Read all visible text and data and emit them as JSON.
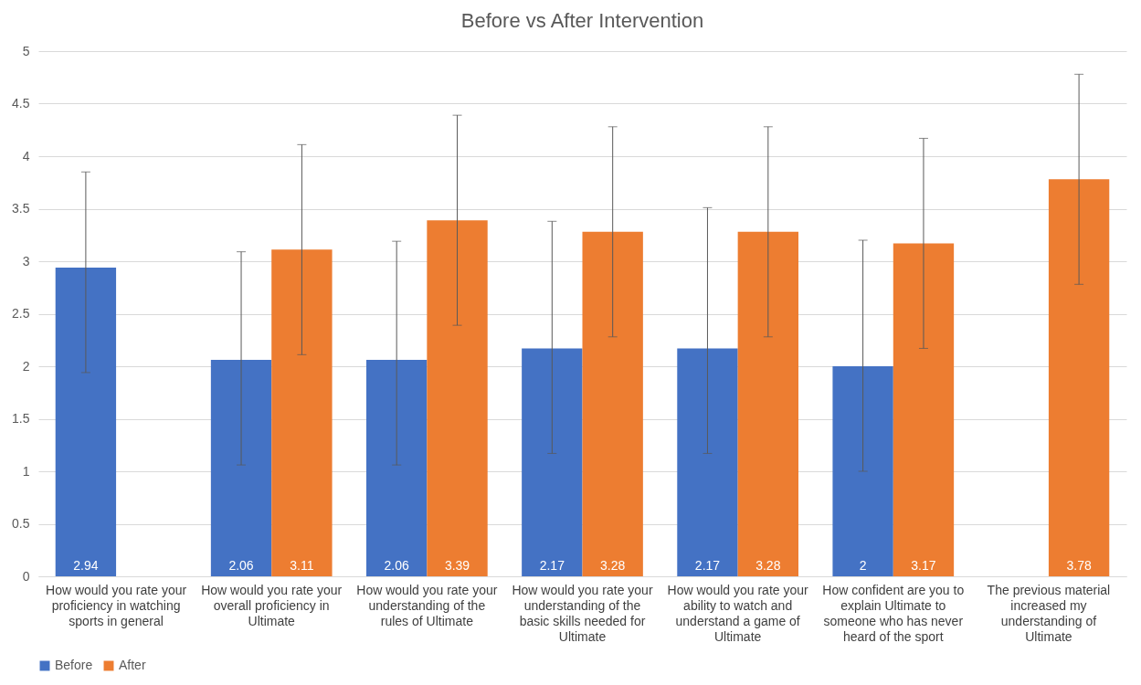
{
  "chart_data": {
    "type": "bar",
    "title": "Before vs After Intervention",
    "categories": [
      "How would you rate your proficiency in watching sports in general",
      "How would you rate your overall proficiency in Ultimate",
      "How would you rate your understanding of the rules of Ultimate",
      "How would you rate your understanding of the basic skills needed for Ultimate",
      "How would you rate your ability to watch and understand a game of Ultimate",
      "How confident are you to explain Ultimate to someone who has never heard of the sport",
      "The previous material increased my understanding of Ultimate"
    ],
    "series": [
      {
        "name": "Before",
        "color": "#4472c4",
        "values": [
          2.94,
          2.06,
          2.06,
          2.17,
          2.17,
          2,
          null
        ],
        "errors": [
          [
            1.94,
            3.85
          ],
          [
            1.06,
            3.09
          ],
          [
            1.06,
            3.19
          ],
          [
            1.17,
            3.38
          ],
          [
            1.17,
            3.51
          ],
          [
            1.0,
            3.2
          ],
          null
        ]
      },
      {
        "name": "After",
        "color": "#ed7d31",
        "values": [
          null,
          3.11,
          3.39,
          3.28,
          3.28,
          3.17,
          3.78
        ],
        "errors": [
          null,
          [
            2.11,
            4.11
          ],
          [
            2.39,
            4.39
          ],
          [
            2.28,
            4.28
          ],
          [
            2.28,
            4.28
          ],
          [
            2.17,
            4.17
          ],
          [
            2.78,
            4.78
          ]
        ]
      }
    ],
    "ylim": [
      0,
      5
    ],
    "yticks": [
      0,
      0.5,
      1,
      1.5,
      2,
      2.5,
      3,
      3.5,
      4,
      4.5,
      5
    ],
    "grid": "y",
    "legend": "bottom",
    "data_labels": true
  }
}
